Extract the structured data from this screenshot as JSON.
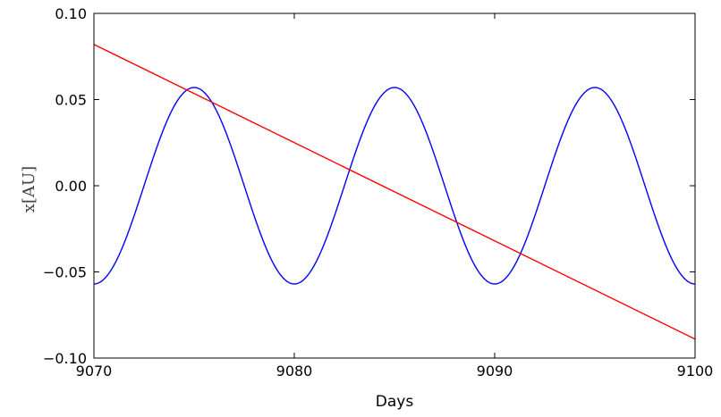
{
  "chart_data": {
    "type": "line",
    "xlabel": "Days",
    "ylabel": "x[AU]",
    "xlim": [
      9070,
      9100
    ],
    "ylim": [
      -0.1,
      0.1
    ],
    "x_ticks": [
      9070,
      9080,
      9090,
      9100
    ],
    "x_tick_labels": [
      "9070",
      "9080",
      "9090",
      "9100"
    ],
    "y_ticks": [
      0.1,
      0.05,
      0.0,
      -0.05,
      -0.1
    ],
    "y_tick_labels": [
      "0.10",
      "0.05",
      "0.00",
      "−0.05",
      "−0.10"
    ],
    "grid": false,
    "series": [
      {
        "color": "#0000ff",
        "x": [
          9070,
          9071,
          9072,
          9073,
          9074,
          9075,
          9076,
          9077,
          9078,
          9079,
          9080,
          9081,
          9082,
          9083,
          9084,
          9085,
          9086,
          9087,
          9088,
          9089,
          9090,
          9091,
          9092,
          9093,
          9094,
          9095,
          9096,
          9097,
          9098,
          9099,
          9100
        ],
        "values": [
          -0.057,
          -0.046,
          -0.018,
          0.018,
          0.046,
          0.057,
          0.046,
          0.018,
          -0.018,
          -0.046,
          -0.057,
          -0.046,
          -0.018,
          0.018,
          0.046,
          0.057,
          0.046,
          0.018,
          -0.018,
          -0.046,
          -0.057,
          -0.046,
          -0.018,
          0.018,
          0.046,
          0.057,
          0.046,
          0.018,
          -0.018,
          -0.046,
          -0.057
        ]
      },
      {
        "color": "#ff0000",
        "x": [
          9070,
          9100
        ],
        "values": [
          0.082,
          -0.089
        ]
      }
    ]
  }
}
